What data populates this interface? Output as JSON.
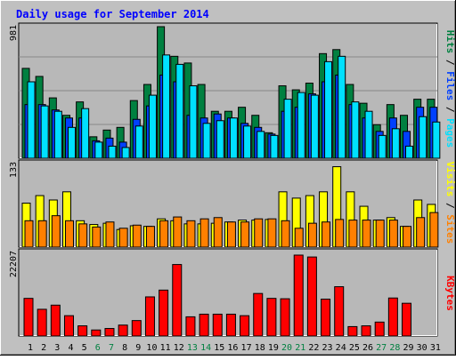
{
  "title": "Daily usage for September 2014",
  "colors": {
    "background": "#c0c0c0",
    "panel": "#b8b8b8",
    "title": "#0000ff",
    "hits": "#008040",
    "files": "#0040ff",
    "pages": "#00e0ff",
    "visits": "#ffff00",
    "sites": "#ff8000",
    "kbytes": "#ff0000",
    "weekend_label": "#008040",
    "weekday_label": "#000000"
  },
  "right_labels": {
    "top": [
      {
        "text": "Hits",
        "color": "#008040"
      },
      {
        "text": " / ",
        "color": "#000000"
      },
      {
        "text": "Files",
        "color": "#0040ff"
      },
      {
        "text": " / ",
        "color": "#000000"
      },
      {
        "text": "Pages",
        "color": "#00e0ff"
      }
    ],
    "middle": [
      {
        "text": "Visits",
        "color": "#ffff00"
      },
      {
        "text": " / ",
        "color": "#000000"
      },
      {
        "text": "Sites",
        "color": "#ff8000"
      }
    ],
    "bottom": [
      {
        "text": "KBytes",
        "color": "#ff0000"
      }
    ]
  },
  "chart_data": [
    {
      "type": "bar",
      "panel": "top",
      "ymax_label": "981",
      "ylim": [
        0,
        981
      ],
      "categories": [
        "1",
        "2",
        "3",
        "4",
        "5",
        "6",
        "7",
        "8",
        "9",
        "10",
        "11",
        "12",
        "13",
        "14",
        "15",
        "16",
        "17",
        "18",
        "19",
        "20",
        "21",
        "22",
        "23",
        "24",
        "25",
        "26",
        "27",
        "28",
        "29",
        "30",
        "31"
      ],
      "series": [
        {
          "name": "Hits",
          "values": [
            670,
            610,
            450,
            320,
            420,
            160,
            210,
            230,
            430,
            550,
            981,
            760,
            710,
            550,
            350,
            350,
            380,
            320,
            190,
            540,
            510,
            560,
            780,
            810,
            550,
            410,
            250,
            400,
            320,
            440,
            440
          ]
        },
        {
          "name": "Files",
          "values": [
            400,
            400,
            360,
            300,
            300,
            130,
            150,
            120,
            290,
            390,
            620,
            570,
            320,
            300,
            330,
            300,
            260,
            230,
            180,
            350,
            380,
            480,
            570,
            620,
            400,
            300,
            200,
            300,
            200,
            380,
            380
          ]
        },
        {
          "name": "Pages",
          "values": [
            570,
            390,
            350,
            230,
            370,
            120,
            90,
            80,
            240,
            470,
            770,
            700,
            540,
            260,
            280,
            300,
            240,
            200,
            170,
            440,
            490,
            470,
            720,
            760,
            420,
            350,
            170,
            220,
            90,
            310,
            270
          ]
        }
      ]
    },
    {
      "type": "bar",
      "panel": "middle",
      "ymax_label": "133",
      "ylim": [
        0,
        133
      ],
      "categories": [
        "1",
        "2",
        "3",
        "4",
        "5",
        "6",
        "7",
        "8",
        "9",
        "10",
        "11",
        "12",
        "13",
        "14",
        "15",
        "16",
        "17",
        "18",
        "19",
        "20",
        "21",
        "22",
        "23",
        "24",
        "25",
        "26",
        "27",
        "28",
        "29",
        "30",
        "31"
      ],
      "series": [
        {
          "name": "Visits",
          "values": [
            70,
            82,
            75,
            88,
            42,
            36,
            38,
            28,
            34,
            33,
            45,
            42,
            37,
            37,
            38,
            40,
            43,
            43,
            44,
            88,
            78,
            82,
            88,
            128,
            88,
            65,
            43,
            47,
            33,
            75,
            68
          ]
        },
        {
          "name": "Sites",
          "values": [
            42,
            42,
            50,
            42,
            37,
            32,
            40,
            30,
            35,
            33,
            42,
            48,
            42,
            45,
            47,
            40,
            40,
            45,
            45,
            42,
            30,
            38,
            40,
            44,
            43,
            43,
            43,
            43,
            33,
            47,
            55
          ]
        }
      ]
    },
    {
      "type": "bar",
      "panel": "bottom",
      "ymax_label": "22207",
      "ylim": [
        0,
        22207
      ],
      "categories": [
        "1",
        "2",
        "3",
        "4",
        "5",
        "6",
        "7",
        "8",
        "9",
        "10",
        "11",
        "12",
        "13",
        "14",
        "15",
        "16",
        "17",
        "18",
        "19",
        "20",
        "21",
        "22",
        "23",
        "24",
        "25",
        "26",
        "27",
        "28",
        "29",
        "30",
        "31"
      ],
      "series": [
        {
          "name": "KBytes",
          "values": [
            10000,
            7100,
            8200,
            5400,
            2700,
            1600,
            2000,
            2900,
            4100,
            10400,
            12200,
            19000,
            5100,
            5800,
            5800,
            5800,
            5400,
            11300,
            10000,
            9900,
            21500,
            21000,
            9800,
            13100,
            2500,
            2700,
            3700,
            10100,
            8700,
            0,
            0
          ]
        }
      ]
    }
  ],
  "day_labels": [
    {
      "text": "1",
      "color": "#000000"
    },
    {
      "text": "2",
      "color": "#000000"
    },
    {
      "text": "3",
      "color": "#000000"
    },
    {
      "text": "4",
      "color": "#000000"
    },
    {
      "text": "5",
      "color": "#000000"
    },
    {
      "text": "6",
      "color": "#008040"
    },
    {
      "text": "7",
      "color": "#008040"
    },
    {
      "text": "8",
      "color": "#000000"
    },
    {
      "text": "9",
      "color": "#000000"
    },
    {
      "text": "10",
      "color": "#000000"
    },
    {
      "text": "11",
      "color": "#000000"
    },
    {
      "text": "12",
      "color": "#000000"
    },
    {
      "text": "13",
      "color": "#008040"
    },
    {
      "text": "14",
      "color": "#008040"
    },
    {
      "text": "15",
      "color": "#000000"
    },
    {
      "text": "16",
      "color": "#000000"
    },
    {
      "text": "17",
      "color": "#000000"
    },
    {
      "text": "18",
      "color": "#000000"
    },
    {
      "text": "19",
      "color": "#000000"
    },
    {
      "text": "20",
      "color": "#008040"
    },
    {
      "text": "21",
      "color": "#008040"
    },
    {
      "text": "22",
      "color": "#000000"
    },
    {
      "text": "23",
      "color": "#000000"
    },
    {
      "text": "24",
      "color": "#000000"
    },
    {
      "text": "25",
      "color": "#000000"
    },
    {
      "text": "26",
      "color": "#000000"
    },
    {
      "text": "27",
      "color": "#008040"
    },
    {
      "text": "28",
      "color": "#008040"
    },
    {
      "text": "29",
      "color": "#000000"
    },
    {
      "text": "30",
      "color": "#000000"
    },
    {
      "text": "31",
      "color": "#000000"
    }
  ]
}
